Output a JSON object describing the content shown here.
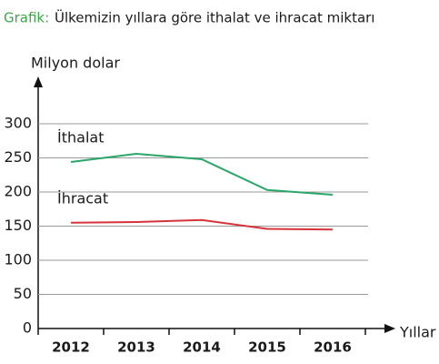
{
  "chart_data": {
    "type": "line",
    "title_label": "Grafik:",
    "title": "Ülkemizin yıllara göre ithalat ve ihracat miktarı",
    "y_label": "Milyon dolar",
    "x_label": "Yıllar",
    "categories": [
      "2012",
      "2013",
      "2014",
      "2015",
      "2016"
    ],
    "series": [
      {
        "name": "İthalat",
        "color": "#2aa66a",
        "values": [
          244,
          256,
          248,
          203,
          196
        ]
      },
      {
        "name": "İhracat",
        "color": "#d6343b",
        "values": [
          155,
          156,
          159,
          146,
          145
        ]
      }
    ],
    "ylim": [
      0,
      300
    ],
    "yticks": [
      0,
      50,
      100,
      150,
      200,
      250,
      300
    ],
    "grid": true
  }
}
